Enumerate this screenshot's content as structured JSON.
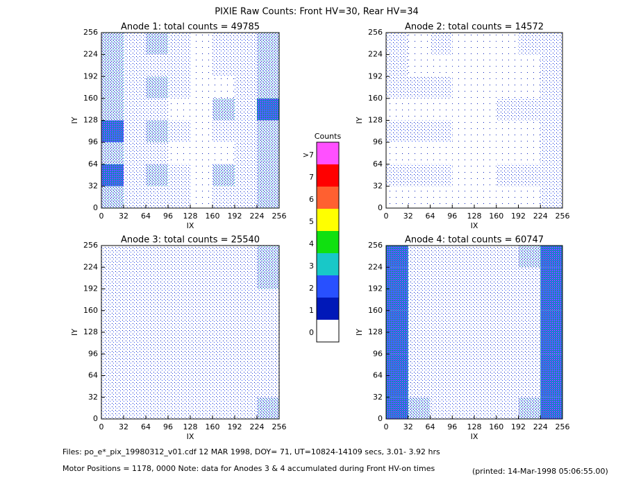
{
  "title": "PIXIE Raw Counts:  Front HV=30, Rear HV=34",
  "panels": [
    {
      "type": "heatmap",
      "title": "Anode 1: total counts = 49785",
      "xlabel": "IX",
      "ylabel": "IY",
      "xlim": [
        0,
        256
      ],
      "ylim": [
        0,
        256
      ],
      "xticks": [
        0,
        32,
        64,
        96,
        128,
        160,
        192,
        224,
        256
      ],
      "yticks": [
        0,
        32,
        64,
        96,
        128,
        160,
        192,
        224,
        256
      ],
      "cells": [
        [
          2,
          1,
          2,
          1,
          0,
          1,
          1,
          2
        ],
        [
          2,
          1,
          1,
          1,
          0,
          1,
          1,
          2
        ],
        [
          2,
          1,
          2,
          1,
          0,
          0,
          1,
          2
        ],
        [
          2,
          1,
          1,
          0,
          0,
          2,
          1,
          3
        ],
        [
          3,
          1,
          2,
          1,
          0,
          1,
          1,
          2
        ],
        [
          2,
          1,
          1,
          0,
          0,
          0,
          1,
          2
        ],
        [
          3,
          1,
          2,
          1,
          0,
          2,
          1,
          2
        ],
        [
          2,
          1,
          1,
          1,
          0,
          1,
          1,
          2
        ]
      ]
    },
    {
      "type": "heatmap",
      "title": "Anode 2: total counts = 14572",
      "xlabel": "IX",
      "ylabel": "IY",
      "xlim": [
        0,
        256
      ],
      "ylim": [
        0,
        256
      ],
      "xticks": [
        0,
        32,
        64,
        96,
        128,
        160,
        192,
        224,
        256
      ],
      "yticks": [
        0,
        32,
        64,
        96,
        128,
        160,
        192,
        224,
        256
      ],
      "cells": [
        [
          1,
          0,
          1,
          0,
          0,
          0,
          1,
          1
        ],
        [
          1,
          0,
          0,
          0,
          0,
          0,
          0,
          1
        ],
        [
          1,
          1,
          1,
          0,
          0,
          0,
          0,
          1
        ],
        [
          0,
          0,
          0,
          0,
          0,
          1,
          1,
          1
        ],
        [
          1,
          1,
          1,
          0,
          0,
          0,
          0,
          1
        ],
        [
          0,
          0,
          0,
          0,
          0,
          0,
          0,
          1
        ],
        [
          1,
          1,
          1,
          0,
          0,
          1,
          1,
          1
        ],
        [
          0,
          0,
          0,
          0,
          0,
          0,
          0,
          1
        ]
      ]
    },
    {
      "type": "heatmap",
      "title": "Anode 3: total counts = 25540",
      "xlabel": "IX",
      "ylabel": "IY",
      "xlim": [
        0,
        256
      ],
      "ylim": [
        0,
        256
      ],
      "xticks": [
        0,
        32,
        64,
        96,
        128,
        160,
        192,
        224,
        256
      ],
      "yticks": [
        0,
        32,
        64,
        96,
        128,
        160,
        192,
        224,
        256
      ],
      "cells": [
        [
          1,
          1,
          1,
          1,
          1,
          1,
          1,
          2
        ],
        [
          1,
          1,
          1,
          1,
          1,
          1,
          1,
          2
        ],
        [
          1,
          1,
          1,
          1,
          1,
          1,
          1,
          1
        ],
        [
          1,
          1,
          1,
          1,
          1,
          1,
          1,
          1
        ],
        [
          1,
          1,
          1,
          1,
          1,
          1,
          1,
          1
        ],
        [
          1,
          1,
          1,
          1,
          1,
          1,
          1,
          1
        ],
        [
          1,
          1,
          1,
          1,
          1,
          1,
          1,
          1
        ],
        [
          1,
          1,
          1,
          1,
          1,
          1,
          1,
          2
        ]
      ]
    },
    {
      "type": "heatmap",
      "title": "Anode 4: total counts = 60747",
      "xlabel": "IX",
      "ylabel": "IY",
      "xlim": [
        0,
        256
      ],
      "ylim": [
        0,
        256
      ],
      "xticks": [
        0,
        32,
        64,
        96,
        128,
        160,
        192,
        224,
        256
      ],
      "yticks": [
        0,
        32,
        64,
        96,
        128,
        160,
        192,
        224,
        256
      ],
      "cells": [
        [
          3,
          1,
          1,
          1,
          1,
          1,
          2,
          3
        ],
        [
          3,
          1,
          1,
          1,
          1,
          1,
          1,
          3
        ],
        [
          3,
          1,
          1,
          1,
          1,
          1,
          1,
          3
        ],
        [
          3,
          1,
          1,
          1,
          1,
          1,
          1,
          3
        ],
        [
          3,
          1,
          1,
          1,
          1,
          1,
          1,
          3
        ],
        [
          3,
          1,
          1,
          1,
          1,
          1,
          1,
          3
        ],
        [
          3,
          1,
          1,
          1,
          1,
          1,
          1,
          3
        ],
        [
          3,
          2,
          1,
          1,
          1,
          1,
          2,
          3
        ]
      ]
    }
  ],
  "colorbar": {
    "title": "Counts",
    "ticks": [
      0,
      1,
      2,
      3,
      4,
      5,
      6,
      7,
      {
        "value": 8,
        "label": ">7"
      }
    ],
    "colors": [
      "#ffffff",
      "#0018b8",
      "#2850ff",
      "#18c8c8",
      "#10e010",
      "#ffff00",
      "#ff6030",
      "#ff0000",
      "#ff50ff"
    ]
  },
  "footer": {
    "files": "Files: po_e*_pix_19980312_v01.cdf    12 MAR 1998, DOY= 71, UT=10824-14109 secs,  3.01- 3.92 hrs",
    "motor": "Motor Positions = 1178, 0000    Note: data for Anodes 3 & 4 accumulated during Front HV-on times",
    "printed": "(printed: 14-Mar-1998 05:06:55.00)"
  }
}
